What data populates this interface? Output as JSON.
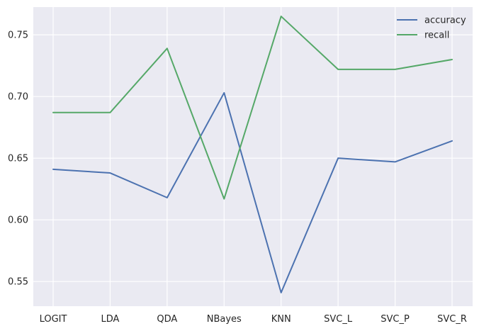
{
  "chart_data": {
    "type": "line",
    "title": "",
    "xlabel": "",
    "ylabel": "",
    "categories": [
      "LOGIT",
      "LDA",
      "QDA",
      "NBayes",
      "KNN",
      "SVC_L",
      "SVC_P",
      "SVC_R"
    ],
    "yticks": [
      "0.55",
      "0.60",
      "0.65",
      "0.70",
      "0.75"
    ],
    "ylim": [
      0.53,
      0.7725
    ],
    "grid": true,
    "legend_position": "top-right",
    "series": [
      {
        "name": "accuracy",
        "color": "#4c72b0",
        "values": [
          0.641,
          0.638,
          0.618,
          0.703,
          0.541,
          0.65,
          0.647,
          0.664
        ]
      },
      {
        "name": "recall",
        "color": "#55a868",
        "values": [
          0.687,
          0.687,
          0.739,
          0.617,
          0.765,
          0.722,
          0.722,
          0.73
        ]
      }
    ],
    "background_color": "#eaeaf2",
    "grid_color": "#ffffff"
  }
}
